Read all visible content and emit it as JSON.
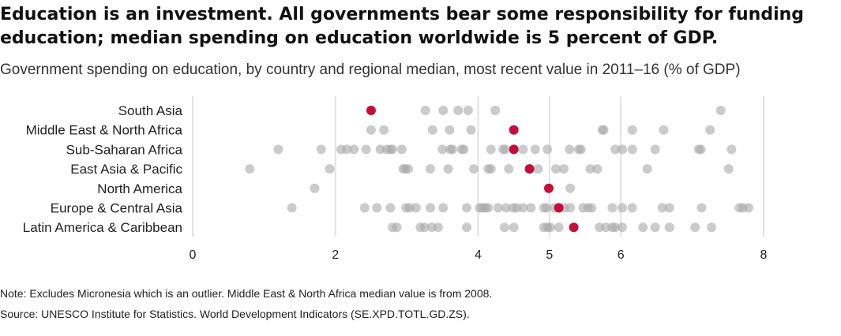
{
  "title": "Education is an investment. All governments bear some responsibility for funding education; median spending on education worldwide is 5 percent of GDP.",
  "subtitle": "Government spending on education, by country and regional median, most recent value in 2011–16 (% of GDP)",
  "note": "Note: Excludes Micronesia which is an outlier. Middle East & North Africa median value is from 2008.",
  "source": "Source: UNESCO Institute for Statistics. World Development Indicators (SE.XPD.TOTL.GD.ZS).",
  "colors": {
    "median": "#c0103a",
    "country": "#a8a8a8",
    "grid": "#e2e2e2"
  },
  "chart_data": {
    "type": "scatter",
    "title": "",
    "xlabel": "",
    "ylabel": "",
    "xlim": [
      0,
      8
    ],
    "x_ticks": [
      0,
      2,
      4,
      5,
      6,
      8
    ],
    "grid": true,
    "categories": [
      "South Asia",
      "Middle East & North Africa",
      "Sub-Saharan Africa",
      "East Asia & Pacific",
      "North America",
      "Europe & Central Asia",
      "Latin America & Caribbean"
    ],
    "series": [
      {
        "category": "South Asia",
        "median": 2.5,
        "countries": [
          3.26,
          3.51,
          3.72,
          3.86,
          4.24,
          7.4
        ]
      },
      {
        "category": "Middle East & North Africa",
        "median": 4.5,
        "countries": [
          2.5,
          2.68,
          3.36,
          3.6,
          3.9,
          5.74,
          5.76,
          6.16,
          6.6,
          7.25
        ]
      },
      {
        "category": "Sub-Saharan Africa",
        "median": 4.5,
        "countries": [
          1.2,
          1.8,
          2.08,
          2.16,
          2.26,
          2.43,
          2.63,
          2.72,
          2.77,
          2.8,
          2.93,
          3.5,
          3.61,
          3.64,
          3.77,
          3.8,
          4.18,
          4.35,
          4.38,
          4.63,
          4.8,
          4.97,
          5.28,
          5.41,
          5.44,
          5.92,
          6.02,
          6.16,
          6.48,
          7.09,
          7.12,
          7.55
        ]
      },
      {
        "category": "East Asia & Pacific",
        "median": 4.72,
        "countries": [
          0.8,
          1.92,
          2.95,
          2.98,
          3.02,
          3.33,
          3.58,
          3.94,
          4.14,
          4.18,
          4.43,
          4.84,
          5.09,
          5.2,
          5.57,
          5.67,
          6.37,
          7.51
        ]
      },
      {
        "category": "North America",
        "median": 4.99,
        "countries": [
          1.71,
          5.29
        ]
      },
      {
        "category": "Europe & Central Asia",
        "median": 5.13,
        "countries": [
          1.39,
          2.41,
          2.58,
          2.77,
          2.99,
          3.04,
          3.13,
          3.33,
          3.51,
          3.84,
          4.02,
          4.06,
          4.1,
          4.14,
          4.28,
          4.39,
          4.49,
          4.54,
          4.63,
          4.74,
          4.92,
          4.96,
          5.07,
          5.21,
          5.29,
          5.47,
          5.54,
          5.59,
          5.88,
          6.02,
          6.16,
          6.58,
          6.68,
          7.13,
          7.66,
          7.71,
          7.79
        ]
      },
      {
        "category": "Latin America & Caribbean",
        "median": 5.34,
        "countries": [
          2.8,
          2.86,
          3.19,
          3.25,
          3.35,
          3.44,
          3.84,
          4.37,
          4.5,
          4.92,
          4.97,
          5.01,
          5.13,
          5.7,
          5.79,
          5.88,
          5.92,
          6.02,
          6.31,
          6.48,
          6.68,
          7.04,
          7.27
        ]
      }
    ]
  }
}
